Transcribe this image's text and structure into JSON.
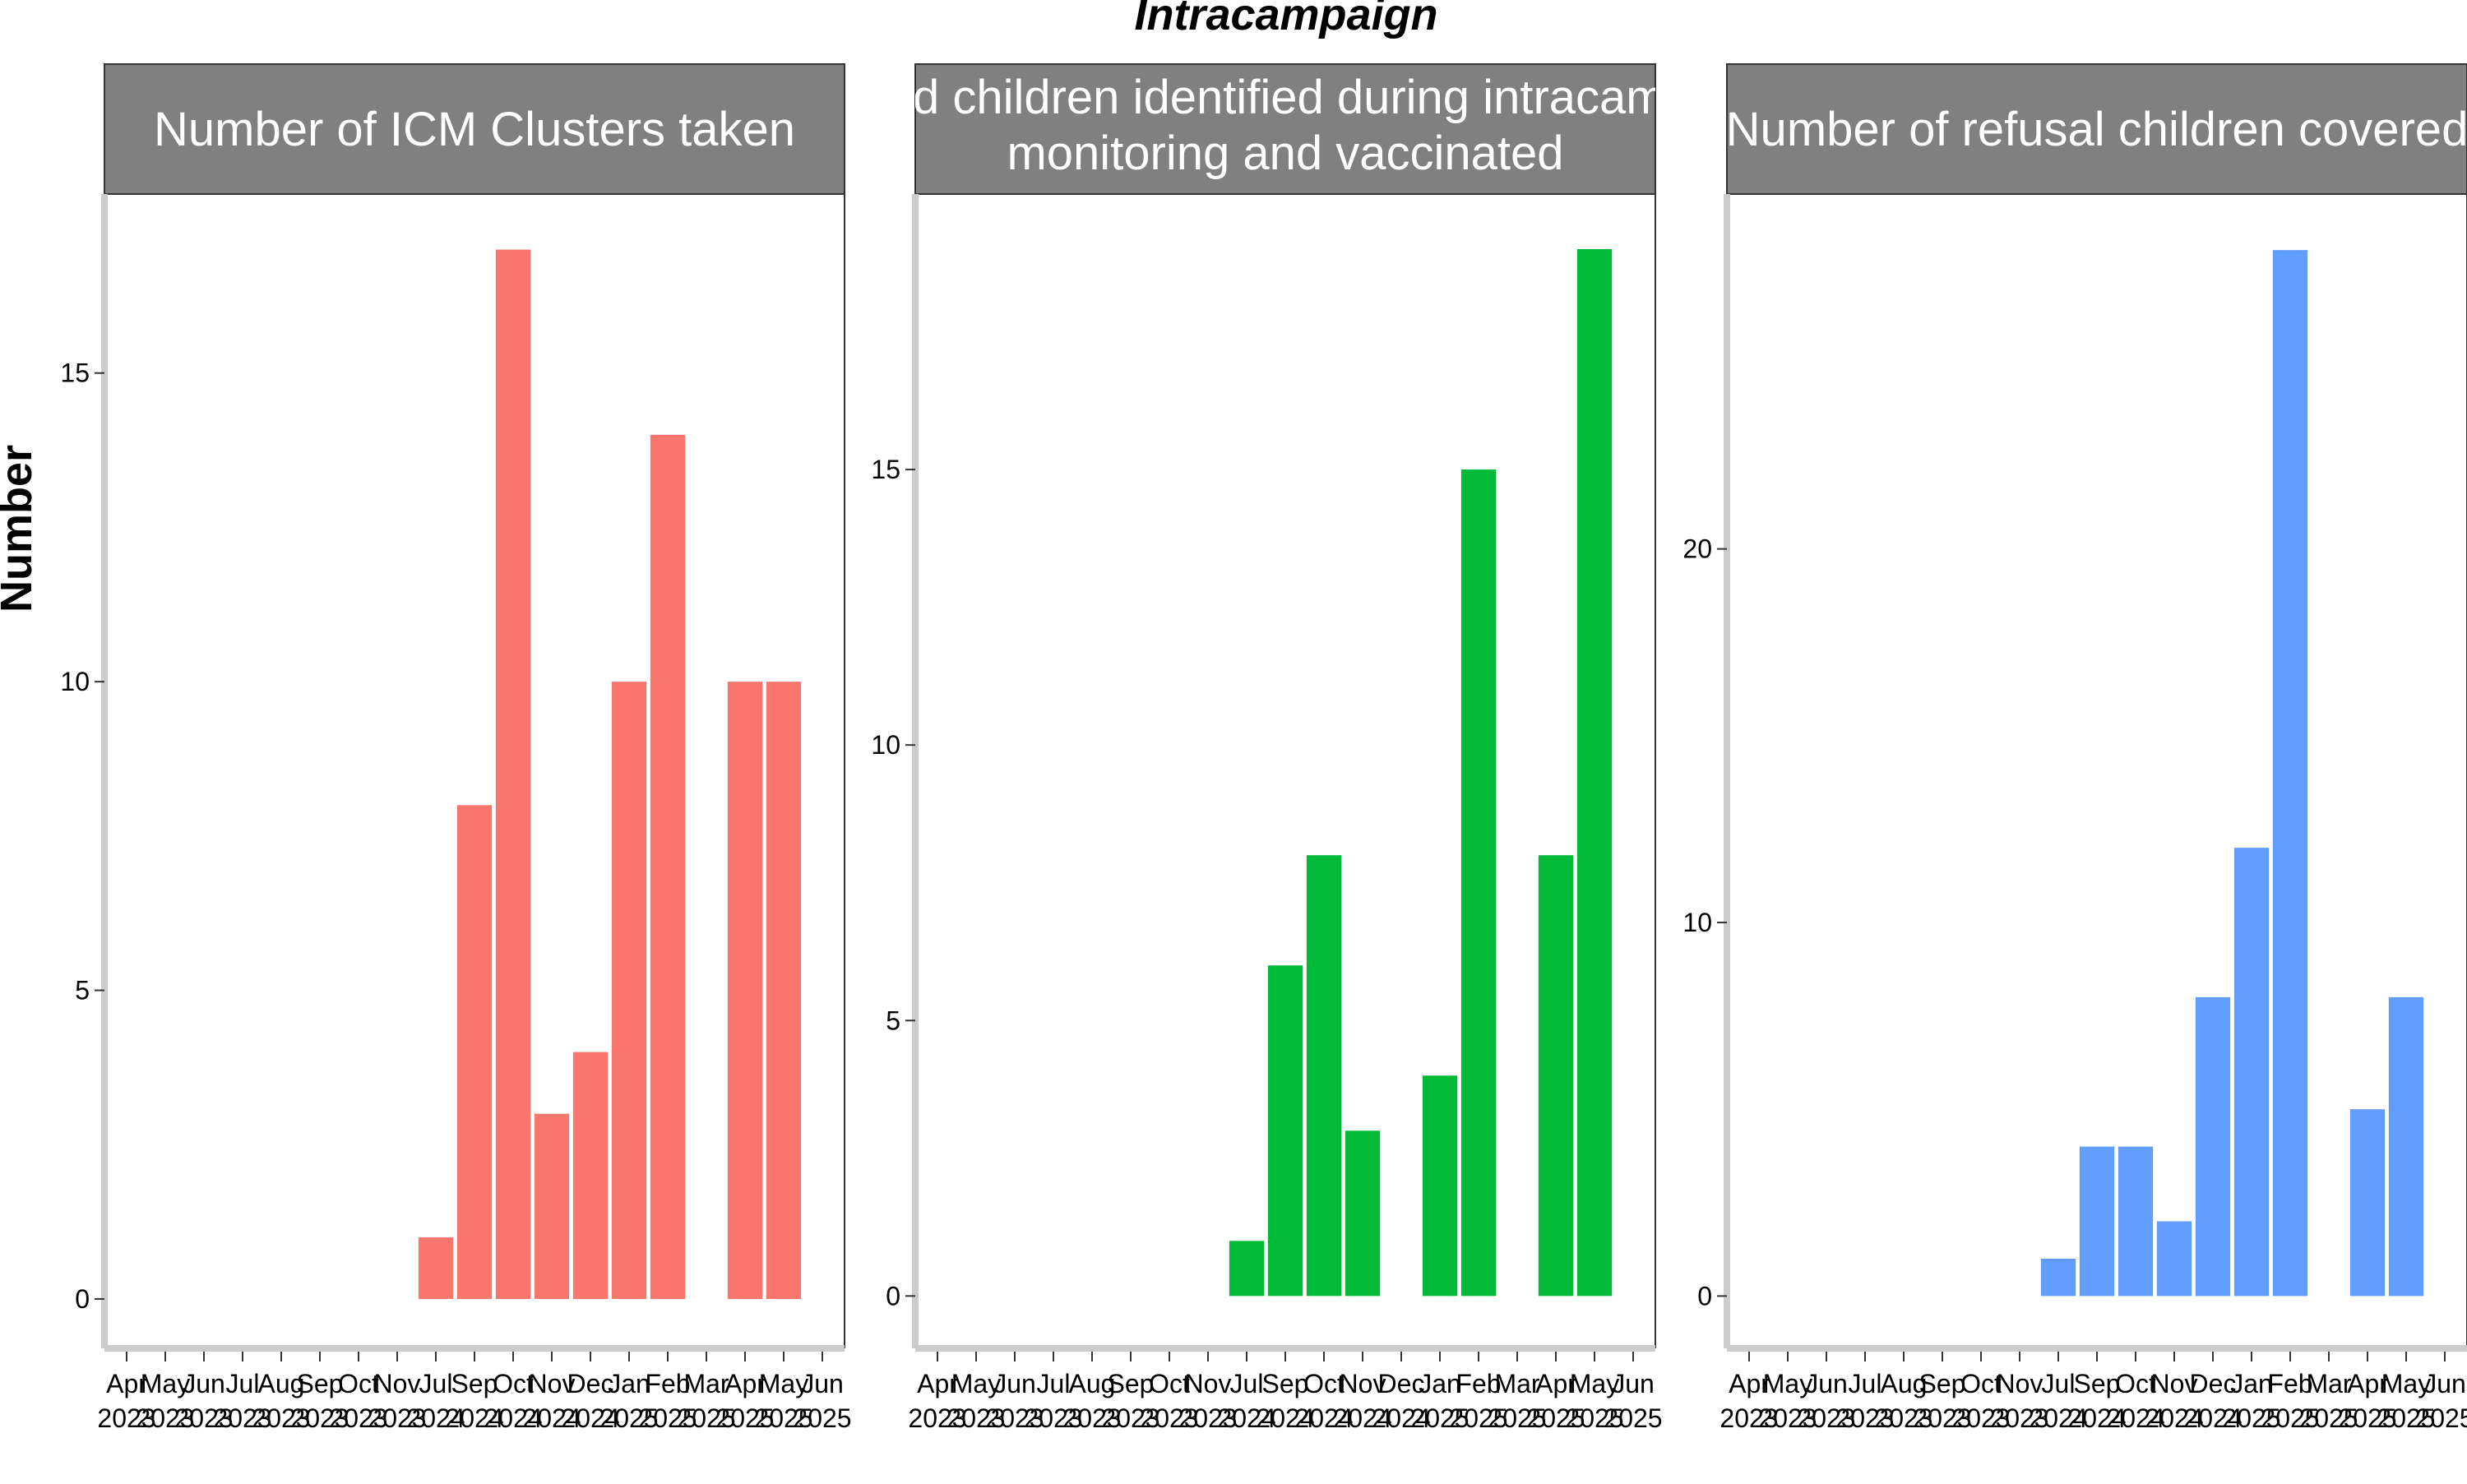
{
  "title": "Intracampaign",
  "ylabel": "Number",
  "colors": {
    "panel1": "#F8766D",
    "panel2": "#00BA38",
    "panel3": "#619CFF",
    "strip": "#808080",
    "axis": "#cccccc"
  },
  "chart_data": [
    {
      "type": "bar",
      "title_lines": [
        "Number of ICM Clusters taken"
      ],
      "color": "#F8766D",
      "ylim": [
        -0.8,
        17.9
      ],
      "yticks": [
        0,
        5,
        10,
        15
      ],
      "categories": [
        "Apr 2023",
        "May 2023",
        "Jun 2023",
        "Jul 2023",
        "Aug 2023",
        "Sep 2023",
        "Oct 2023",
        "Nov 2023",
        "Jul 2024",
        "Sep 2024",
        "Oct 2024",
        "Nov 2024",
        "Dec 2024",
        "Jan 2025",
        "Feb 2025",
        "Mar 2025",
        "Apr 2025",
        "May 2025",
        "Jun 2025"
      ],
      "values": [
        null,
        null,
        null,
        null,
        null,
        null,
        null,
        null,
        1,
        8,
        17,
        3,
        4,
        10,
        14,
        null,
        10,
        10,
        null
      ]
    },
    {
      "type": "bar",
      "title_lines": [
        "Missed children identified during intracampaign",
        "monitoring and vaccinated"
      ],
      "color": "#00BA38",
      "ylim": [
        -0.95,
        20.0
      ],
      "yticks": [
        0,
        5,
        10,
        15
      ],
      "categories": [
        "Apr 2023",
        "May 2023",
        "Jun 2023",
        "Jul 2023",
        "Aug 2023",
        "Sep 2023",
        "Oct 2023",
        "Nov 2023",
        "Jul 2024",
        "Sep 2024",
        "Oct 2024",
        "Nov 2024",
        "Dec 2024",
        "Jan 2025",
        "Feb 2025",
        "Mar 2025",
        "Apr 2025",
        "May 2025",
        "Jun 2025"
      ],
      "values": [
        null,
        null,
        null,
        null,
        null,
        null,
        null,
        null,
        1,
        6,
        8,
        3,
        null,
        4,
        15,
        null,
        8,
        19,
        null
      ]
    },
    {
      "type": "bar",
      "title_lines": [
        "Number of refusal children covered"
      ],
      "color": "#619CFF",
      "ylim": [
        -1.4,
        29.5
      ],
      "yticks": [
        0,
        10,
        20
      ],
      "categories": [
        "Apr 2023",
        "May 2023",
        "Jun 2023",
        "Jul 2023",
        "Aug 2023",
        "Sep 2023",
        "Oct 2023",
        "Nov 2023",
        "Jul 2024",
        "Sep 2024",
        "Oct 2024",
        "Nov 2024",
        "Dec 2024",
        "Jan 2025",
        "Feb 2025",
        "Mar 2025",
        "Apr 2025",
        "May 2025",
        "Jun 2025"
      ],
      "values": [
        null,
        null,
        null,
        null,
        null,
        null,
        null,
        null,
        1,
        4,
        4,
        2,
        8,
        12,
        28,
        null,
        5,
        8,
        null
      ]
    }
  ]
}
